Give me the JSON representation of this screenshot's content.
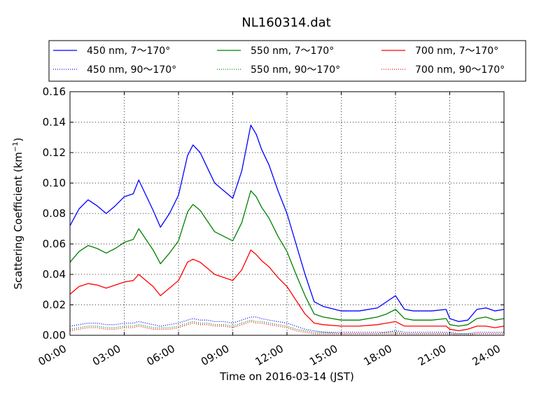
{
  "chart_data": {
    "type": "line",
    "title": "NL160314.dat",
    "xlabel": "Time on 2016-03-14 (JST)",
    "ylabel": "Scattering Coefficient (km",
    "ylabel_sup": "−1",
    "ylabel_close": ")",
    "xlim": [
      0,
      24
    ],
    "ylim": [
      0,
      0.16
    ],
    "x_ticks": [
      0,
      3,
      6,
      9,
      12,
      15,
      18,
      21,
      24
    ],
    "x_tick_labels": [
      "00:00",
      "03:00",
      "06:00",
      "09:00",
      "12:00",
      "15:00",
      "18:00",
      "21:00",
      "24:00"
    ],
    "y_ticks": [
      0,
      0.02,
      0.04,
      0.06,
      0.08,
      0.1,
      0.12,
      0.14,
      0.16
    ],
    "y_tick_labels": [
      "0.00",
      "0.02",
      "0.04",
      "0.06",
      "0.08",
      "0.10",
      "0.12",
      "0.14",
      "0.16"
    ],
    "grid": true,
    "legend_position": "top, above plot, 3 columns",
    "x": [
      0,
      0.5,
      1,
      1.5,
      2,
      2.5,
      3,
      3.5,
      3.8,
      4.2,
      4.6,
      5,
      5.5,
      6,
      6.5,
      6.8,
      7.2,
      7.6,
      8,
      8.5,
      9,
      9.5,
      10,
      10.3,
      10.6,
      11,
      11.5,
      12,
      12.5,
      13,
      13.5,
      14,
      15,
      16,
      17,
      17.5,
      18,
      18.5,
      19,
      20,
      20.8,
      21,
      21.5,
      22,
      22.5,
      23,
      23.5,
      24
    ],
    "series": [
      {
        "name": "450 nm, 7～170°",
        "color": "#0000ff",
        "style": "solid",
        "values": [
          0.072,
          0.083,
          0.089,
          0.085,
          0.08,
          0.085,
          0.091,
          0.093,
          0.102,
          0.092,
          0.082,
          0.071,
          0.08,
          0.092,
          0.118,
          0.125,
          0.12,
          0.11,
          0.1,
          0.095,
          0.09,
          0.108,
          0.138,
          0.132,
          0.122,
          0.112,
          0.095,
          0.08,
          0.06,
          0.04,
          0.022,
          0.019,
          0.016,
          0.016,
          0.018,
          0.022,
          0.026,
          0.017,
          0.016,
          0.016,
          0.017,
          0.011,
          0.009,
          0.01,
          0.017,
          0.018,
          0.016,
          0.017
        ]
      },
      {
        "name": "450 nm, 90～170°",
        "color": "#0000ff",
        "style": "dotted",
        "values": [
          0.006,
          0.007,
          0.008,
          0.008,
          0.007,
          0.007,
          0.008,
          0.008,
          0.009,
          0.008,
          0.007,
          0.006,
          0.007,
          0.008,
          0.01,
          0.011,
          0.01,
          0.01,
          0.009,
          0.009,
          0.008,
          0.01,
          0.012,
          0.012,
          0.011,
          0.01,
          0.009,
          0.008,
          0.006,
          0.004,
          0.003,
          0.002,
          0.002,
          0.002,
          0.002,
          0.002,
          0.003,
          0.002,
          0.002,
          0.002,
          0.002,
          0.002,
          0.001,
          0.001,
          0.002,
          0.002,
          0.002,
          0.002
        ]
      },
      {
        "name": "550 nm, 7～170°",
        "color": "#008000",
        "style": "solid",
        "values": [
          0.048,
          0.055,
          0.059,
          0.057,
          0.054,
          0.057,
          0.061,
          0.063,
          0.07,
          0.063,
          0.056,
          0.047,
          0.054,
          0.062,
          0.081,
          0.086,
          0.082,
          0.075,
          0.068,
          0.065,
          0.062,
          0.074,
          0.095,
          0.091,
          0.084,
          0.077,
          0.065,
          0.055,
          0.04,
          0.026,
          0.014,
          0.012,
          0.01,
          0.01,
          0.012,
          0.014,
          0.017,
          0.011,
          0.01,
          0.01,
          0.011,
          0.007,
          0.006,
          0.007,
          0.011,
          0.012,
          0.01,
          0.011
        ]
      },
      {
        "name": "550 nm, 90～170°",
        "color": "#008000",
        "style": "dotted",
        "values": [
          0.004,
          0.005,
          0.006,
          0.006,
          0.005,
          0.005,
          0.006,
          0.006,
          0.007,
          0.006,
          0.005,
          0.005,
          0.005,
          0.006,
          0.008,
          0.009,
          0.008,
          0.008,
          0.007,
          0.007,
          0.006,
          0.008,
          0.01,
          0.009,
          0.009,
          0.008,
          0.007,
          0.006,
          0.004,
          0.003,
          0.002,
          0.002,
          0.001,
          0.001,
          0.001,
          0.002,
          0.002,
          0.001,
          0.001,
          0.001,
          0.001,
          0.001,
          0.001,
          0.001,
          0.001,
          0.001,
          0.001,
          0.001
        ]
      },
      {
        "name": "700 nm, 7～170°",
        "color": "#ff0000",
        "style": "solid",
        "values": [
          0.027,
          0.032,
          0.034,
          0.033,
          0.031,
          0.033,
          0.035,
          0.036,
          0.04,
          0.036,
          0.032,
          0.026,
          0.031,
          0.036,
          0.048,
          0.05,
          0.048,
          0.044,
          0.04,
          0.038,
          0.036,
          0.043,
          0.056,
          0.053,
          0.049,
          0.045,
          0.038,
          0.032,
          0.023,
          0.014,
          0.008,
          0.007,
          0.006,
          0.006,
          0.007,
          0.008,
          0.009,
          0.006,
          0.006,
          0.006,
          0.006,
          0.004,
          0.003,
          0.004,
          0.006,
          0.006,
          0.005,
          0.006
        ]
      },
      {
        "name": "700 nm, 90～170°",
        "color": "#ff0000",
        "style": "dotted",
        "values": [
          0.003,
          0.004,
          0.005,
          0.005,
          0.004,
          0.004,
          0.005,
          0.005,
          0.006,
          0.005,
          0.004,
          0.004,
          0.004,
          0.005,
          0.007,
          0.008,
          0.007,
          0.007,
          0.006,
          0.006,
          0.005,
          0.007,
          0.009,
          0.008,
          0.008,
          0.007,
          0.006,
          0.005,
          0.003,
          0.002,
          0.001,
          0.001,
          0.001,
          0.001,
          0.001,
          0.001,
          0.001,
          0.001,
          0.001,
          0.001,
          0.001,
          0.001,
          0.0,
          0.0,
          0.001,
          0.001,
          0.001,
          0.001
        ]
      }
    ]
  }
}
